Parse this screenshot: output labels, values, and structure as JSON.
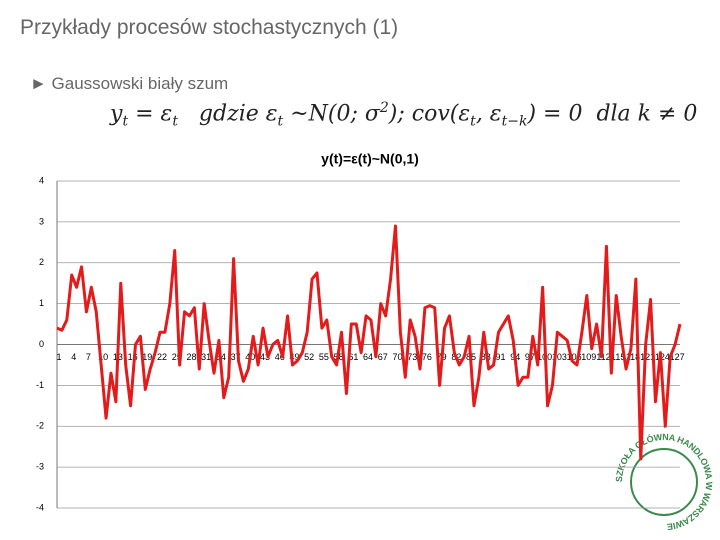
{
  "header": {
    "title": "Przykłady procesów stochastycznych (1)",
    "bullet": "► Gaussowski biały szum"
  },
  "formula": [
    {
      "text": "y"
    },
    {
      "sub": "t"
    },
    {
      "text": " = ε"
    },
    {
      "sub": "t"
    },
    {
      "text": "   gdzie ε"
    },
    {
      "sub": "t"
    },
    {
      "text": " ~N(0; σ"
    },
    {
      "sup": "2"
    },
    {
      "text": "); cov(ε"
    },
    {
      "sub": "t"
    },
    {
      "text": ", ε"
    },
    {
      "sub": "t−k"
    },
    {
      "text": ") = 0  dla k ≠ 0"
    }
  ],
  "logo": {
    "text": "SZKOŁA GŁÓWNA HANDLOWA W WARSZAWIE"
  },
  "chart_data": {
    "type": "line",
    "title": "y(t)=ε(t)~N(0,1)",
    "color": "#e31b1b",
    "grid": true,
    "ylim": [
      -4,
      4
    ],
    "yticks": [
      -4,
      -3,
      -2,
      -1,
      0,
      1,
      2,
      3,
      4
    ],
    "categories": [
      1,
      null,
      null,
      4,
      null,
      null,
      7,
      null,
      null,
      10,
      null,
      null,
      13,
      null,
      null,
      16,
      null,
      null,
      19,
      null,
      null,
      22,
      null,
      null,
      25,
      null,
      null,
      28,
      null,
      null,
      31,
      null,
      null,
      34,
      null,
      null,
      37,
      null,
      null,
      40,
      null,
      null,
      43,
      null,
      null,
      46,
      null,
      null,
      49,
      null,
      null,
      52,
      null,
      null,
      55,
      null,
      null,
      58,
      null,
      null,
      61,
      null,
      null,
      64,
      null,
      null,
      67,
      null,
      null,
      70,
      null,
      null,
      73,
      null,
      null,
      76,
      null,
      null,
      79,
      null,
      null,
      82,
      null,
      null,
      85,
      null,
      null,
      88,
      null,
      null,
      91,
      null,
      null,
      94,
      null,
      null,
      97,
      null,
      null,
      100,
      null,
      null,
      103,
      null,
      null,
      106,
      null,
      null,
      109,
      null,
      null,
      112,
      null,
      null,
      115,
      null,
      null,
      118,
      null,
      null,
      121,
      null,
      null,
      124,
      null,
      null,
      127,
      null
    ],
    "values": [
      0.4,
      0.35,
      0.6,
      1.7,
      1.4,
      1.9,
      0.8,
      1.4,
      0.8,
      -0.5,
      -1.8,
      -0.7,
      -1.4,
      1.5,
      -0.5,
      -1.5,
      0.0,
      0.2,
      -1.1,
      -0.6,
      -0.2,
      0.3,
      0.3,
      1.0,
      2.3,
      -0.5,
      0.8,
      0.7,
      0.9,
      -0.6,
      1.0,
      0.1,
      -0.7,
      0.1,
      -1.3,
      -0.8,
      2.1,
      -0.4,
      -0.9,
      -0.6,
      0.2,
      -0.5,
      0.4,
      -0.3,
      0.0,
      0.1,
      -0.3,
      0.7,
      -0.5,
      -0.4,
      -0.2,
      0.3,
      1.6,
      1.75,
      0.4,
      0.6,
      -0.3,
      -0.5,
      0.3,
      -1.2,
      0.5,
      0.5,
      -0.2,
      0.7,
      0.6,
      -0.3,
      1.0,
      0.7,
      1.6,
      2.9,
      0.3,
      -0.8,
      0.6,
      0.2,
      -0.6,
      0.9,
      0.95,
      0.9,
      -1.0,
      0.4,
      0.7,
      -0.2,
      -0.5,
      -0.3,
      0.2,
      -1.5,
      -0.8,
      0.3,
      -0.6,
      -0.5,
      0.3,
      0.5,
      0.7,
      0.1,
      -1.0,
      -0.8,
      -0.8,
      0.2,
      -0.5,
      1.4,
      -1.5,
      -1.0,
      0.3,
      0.2,
      0.1,
      -0.4,
      -0.5,
      0.3,
      1.2,
      -0.1,
      0.5,
      -0.3,
      2.4,
      -0.7,
      1.2,
      0.2,
      -0.6,
      -0.1,
      1.6,
      -2.8,
      0.0,
      1.1,
      -1.4,
      -0.2,
      -2.0,
      -0.3,
      0.0,
      0.5
    ]
  }
}
